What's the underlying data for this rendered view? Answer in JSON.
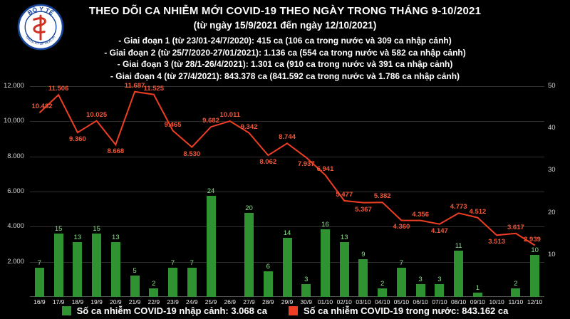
{
  "logo": {
    "text": "BỘ Y TẾ",
    "subtext": "MINISTRY OF HEALTH"
  },
  "header": {
    "title": "THEO DÕI CA NHIỄM MỚI COVID-19 THEO NGÀY TRONG THÁNG 9-10/2021",
    "subtitle": "(từ ngày 15/9/2021 đến ngày 12/10/2021)",
    "stages": [
      "- Giai đoạn 1 (từ 23/01-24/7/2020): 415 ca (106 ca trong nước và 309 ca nhập cảnh)",
      "- Giai đoạn 2 (từ 25/7/2020-27/01/2021): 1.136 ca (554 ca trong nước và 582 ca nhập cảnh)",
      "- Giai đoạn 3 (từ 28/1-26/4/2021): 1.301 ca (910 ca trong nước và 391 ca nhập cảnh)",
      "- Giai đoạn 4 (từ 27/4/2021): 843.378 ca (841.592 ca trong nước và 1.786 ca nhập cảnh)"
    ]
  },
  "chart_data": {
    "type": "combo",
    "background": "#000000",
    "grid": true,
    "categories": [
      "16/9",
      "17/9",
      "18/9",
      "19/9",
      "20/9",
      "21/9",
      "22/9",
      "23/9",
      "24/9",
      "25/9",
      "26/9",
      "27/9",
      "28/9",
      "29/9",
      "30/9",
      "01/10",
      "02/10",
      "03/10",
      "04/10",
      "05/10",
      "06/10",
      "07/10",
      "08/10",
      "09/10",
      "10/10",
      "11/10",
      "12/10"
    ],
    "series": [
      {
        "name": "Số ca nhiễm COVID-19 nhập cảnh",
        "type": "bar",
        "axis": "right",
        "color": "#2f9331",
        "label_color": "#8ce28c",
        "values": [
          7,
          15,
          13,
          15,
          13,
          5,
          2,
          7,
          7,
          24,
          0,
          20,
          6,
          14,
          3,
          16,
          13,
          9,
          2,
          7,
          3,
          3,
          11,
          1,
          0,
          2,
          10
        ]
      },
      {
        "name": "Số ca nhiễm COVID-19 trong nước",
        "type": "line",
        "axis": "left",
        "color": "#ef3e23",
        "label_color": "#f2573a",
        "values": [
          10482,
          11506,
          9360,
          10025,
          8668,
          11687,
          11525,
          9465,
          8530,
          9682,
          10011,
          9342,
          8062,
          8744,
          7937,
          6941,
          5477,
          5367,
          5382,
          4360,
          4356,
          4147,
          4773,
          4512,
          3513,
          3617,
          2939
        ],
        "labels": [
          "10.482",
          "11.506",
          "9.360",
          "10.025",
          "8.668",
          "11.687",
          "11.525",
          "9.465",
          "8.530",
          "9.682",
          "10.011",
          "9.342",
          "8.062",
          "8.744",
          "7.937",
          "6.941",
          "5.477",
          "5.367",
          "5.382",
          "4.360",
          "4.356",
          "4.147",
          "4.773",
          "4.512",
          "3.513",
          "3.617",
          "2.939"
        ]
      }
    ],
    "left_axis": {
      "max": 12000,
      "ticks": [
        {
          "label": "12.000",
          "value": 12000
        },
        {
          "label": "10.000",
          "value": 10000
        },
        {
          "label": "8.000",
          "value": 8000
        },
        {
          "label": "6.000",
          "value": 6000
        },
        {
          "label": "4.000",
          "value": 4000
        },
        {
          "label": "2.000",
          "value": 2000
        }
      ]
    },
    "right_axis": {
      "max": 50,
      "ticks": [
        {
          "label": "50",
          "value": 50
        },
        {
          "label": "40",
          "value": 40
        },
        {
          "label": "30",
          "value": 30
        },
        {
          "label": "20",
          "value": 20
        },
        {
          "label": "10",
          "value": 10
        }
      ]
    }
  },
  "footer": {
    "legend": [
      {
        "label": "Số ca nhiễm COVID-19 nhập cảnh: 3.068 ca",
        "color": "#2f9331"
      },
      {
        "label": "Số ca nhiễm COVID-19 trong nước: 843.162 ca",
        "color": "#ef3e23"
      }
    ]
  }
}
